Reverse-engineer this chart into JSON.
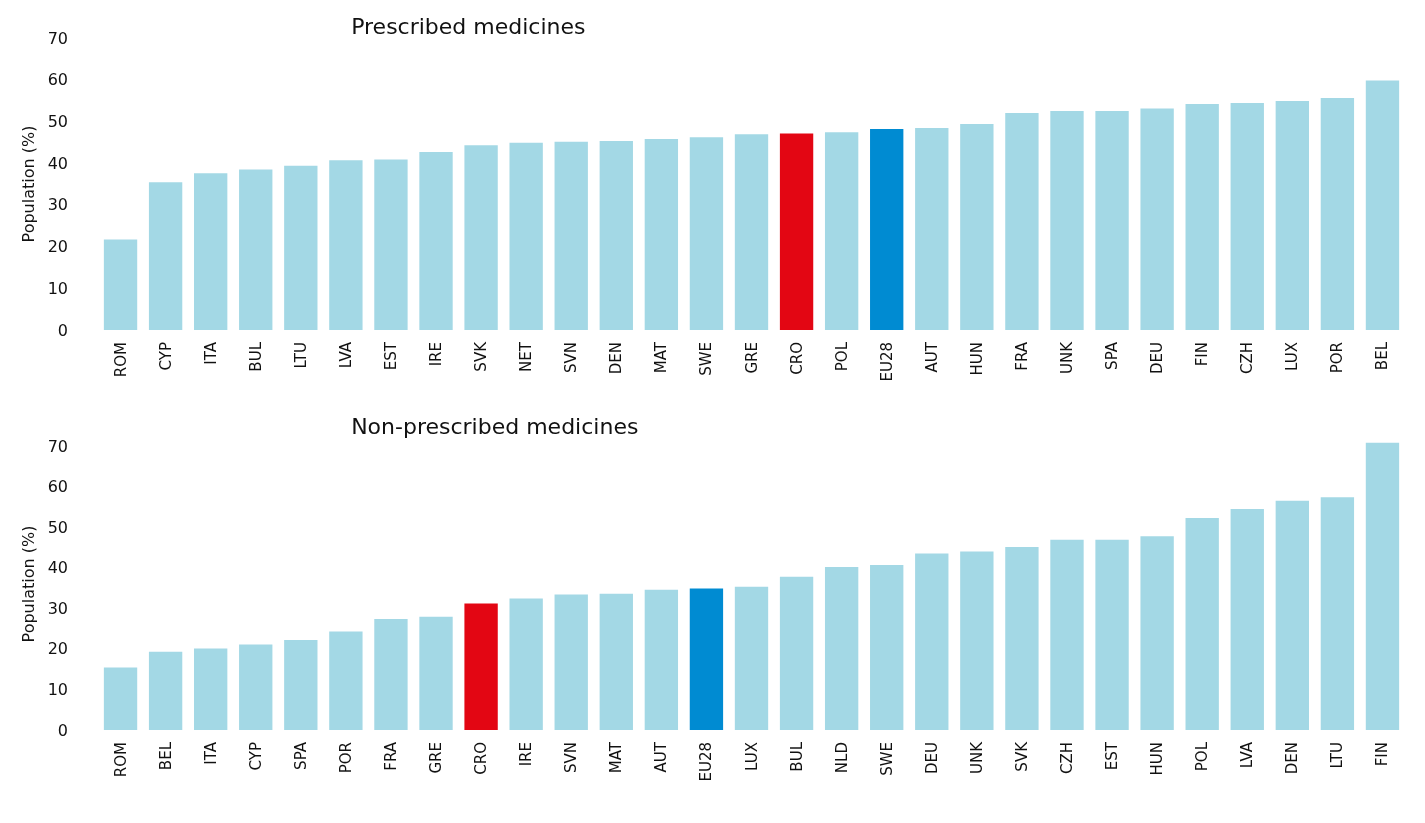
{
  "chart_data": [
    {
      "type": "bar",
      "title": "Prescribed medicines",
      "ylabel": "Population (%)",
      "categories": [
        "ROM",
        "CYP",
        "ITA",
        "BUL",
        "LTU",
        "LVA",
        "EST",
        "IRE",
        "SVK",
        "NET",
        "SVN",
        "DEN",
        "MAT",
        "SWE",
        "GRE",
        "CRO",
        "POL",
        "EU28",
        "AUT",
        "HUN",
        "FRA",
        "UNK",
        "SPA",
        "DEU",
        "FIN",
        "CZH",
        "LUX",
        "POR",
        "BEL"
      ],
      "values": [
        21.7,
        35.4,
        37.6,
        38.5,
        39.4,
        40.7,
        40.9,
        42.7,
        44.3,
        44.9,
        45.1,
        45.3,
        45.8,
        46.2,
        46.9,
        47.1,
        47.4,
        48.2,
        48.4,
        49.4,
        52.0,
        52.5,
        52.5,
        53.1,
        54.2,
        54.4,
        54.9,
        55.6,
        59.8
      ],
      "colors": [
        "#a3d8e5",
        "#a3d8e5",
        "#a3d8e5",
        "#a3d8e5",
        "#a3d8e5",
        "#a3d8e5",
        "#a3d8e5",
        "#a3d8e5",
        "#a3d8e5",
        "#a3d8e5",
        "#a3d8e5",
        "#a3d8e5",
        "#a3d8e5",
        "#a3d8e5",
        "#a3d8e5",
        "#e30613",
        "#a3d8e5",
        "#008bd2",
        "#a3d8e5",
        "#a3d8e5",
        "#a3d8e5",
        "#a3d8e5",
        "#a3d8e5",
        "#a3d8e5",
        "#a3d8e5",
        "#a3d8e5",
        "#a3d8e5",
        "#a3d8e5",
        "#a3d8e5"
      ],
      "ylim": [
        0,
        70
      ],
      "yticks": [
        0,
        10,
        20,
        30,
        40,
        50,
        60,
        70
      ],
      "grid": false
    },
    {
      "type": "bar",
      "title": "Non-prescribed medicines",
      "ylabel": "Population (%)",
      "categories": [
        "ROM",
        "BEL",
        "ITA",
        "CYP",
        "SPA",
        "POR",
        "FRA",
        "GRE",
        "CRO",
        "IRE",
        "SVN",
        "MAT",
        "AUT",
        "EU28",
        "LUX",
        "BUL",
        "NLD",
        "SWE",
        "DEU",
        "UNK",
        "SVK",
        "CZH",
        "EST",
        "HUN",
        "POL",
        "LVA",
        "DEN",
        "LTU",
        "FIN"
      ],
      "values": [
        15.4,
        19.3,
        20.1,
        21.1,
        22.2,
        24.3,
        27.4,
        27.9,
        31.2,
        32.4,
        33.4,
        33.6,
        34.6,
        34.9,
        35.3,
        37.8,
        40.2,
        40.7,
        43.5,
        44.0,
        45.1,
        46.9,
        46.9,
        47.8,
        52.3,
        54.5,
        56.5,
        57.4,
        70.8
      ],
      "colors": [
        "#a3d8e5",
        "#a3d8e5",
        "#a3d8e5",
        "#a3d8e5",
        "#a3d8e5",
        "#a3d8e5",
        "#a3d8e5",
        "#a3d8e5",
        "#e30613",
        "#a3d8e5",
        "#a3d8e5",
        "#a3d8e5",
        "#a3d8e5",
        "#008bd2",
        "#a3d8e5",
        "#a3d8e5",
        "#a3d8e5",
        "#a3d8e5",
        "#a3d8e5",
        "#a3d8e5",
        "#a3d8e5",
        "#a3d8e5",
        "#a3d8e5",
        "#a3d8e5",
        "#a3d8e5",
        "#a3d8e5",
        "#a3d8e5",
        "#a3d8e5",
        "#a3d8e5"
      ],
      "ylim": [
        0,
        72
      ],
      "yticks": [
        0,
        10,
        20,
        30,
        40,
        50,
        60,
        70
      ],
      "grid": false
    }
  ]
}
